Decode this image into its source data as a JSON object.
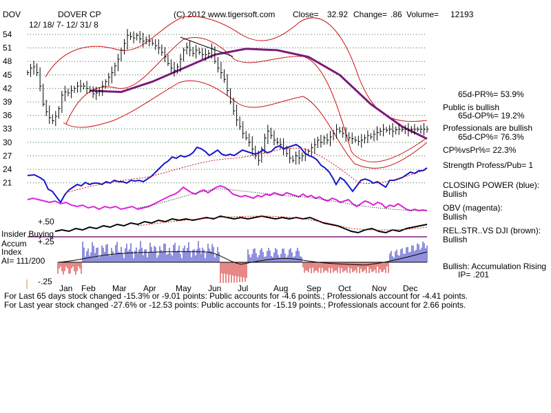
{
  "header": {
    "ticker": "DOV",
    "company": "DOVER CP",
    "date_range": "12/ 18/ 7- 12/ 31/ 8",
    "copyright": "(C) 2012 www.tigersoft.com",
    "close_label": "Close=",
    "close_value": "32.92",
    "change_label": "Change=",
    "change_value": ".86",
    "volume_label": "Volume=",
    "volume_value": "12193"
  },
  "indicator_labels": {
    "insider_buying": "Insider Buying",
    "accum_index_line1": "Accum",
    "accum_index_line2": "Index",
    "ai": "AI= 111/200",
    "plus50": "+.50",
    "plus25": "+.25",
    "minus25": "-.25"
  },
  "right_panel": {
    "pr": "65d-PR%= 53.9%",
    "public_bullish": "Public is bullish",
    "op": "65d-OP%= 19.2%",
    "pros_bullish": "Professionals are bullish",
    "cp": "65d-CP%= 76.3%",
    "cpvspr": "CP%vsPr%=  22.3%",
    "strength": "Strength Profess/Pub= 1",
    "closing_power": "CLOSING POWER (blue):",
    "closing_power_value": "Bullish",
    "obv": "OBV (magenta):",
    "obv_value": "Bullish",
    "relstr": "REL.STR..VS DJI (brown):",
    "relstr_value": "Bullish",
    "accum_rising": "Bullish: Accumulation Rising",
    "ip": "IP=  .201"
  },
  "footer": {
    "line1": "For Last 65 days stock changed -15.3% or -9.01 points:  Public accounts for -4.6 points.;  Professionals account for -4.41 points.",
    "line2": "For Last year stock changed -27.6% or -12.53 points:  Public accounts for -15.19 points.;  Professionals account for  2.66 points."
  },
  "colors": {
    "price_bar": "#000000",
    "ma_purple": "#7b1a7b",
    "bands_red": "#cc1111",
    "closing_power_blue": "#1515cc",
    "obv_magenta": "#dd22dd",
    "relstr_black": "#000000",
    "accum_blue": "#2222bb",
    "accum_red": "#cc1111",
    "grid": "#2f6f2f"
  },
  "chart_data": {
    "type": "line",
    "title": "DOVER CP",
    "ylim": [
      19,
      56
    ],
    "yticks": [
      54,
      51,
      48,
      45,
      42,
      39,
      36,
      33,
      30,
      27,
      24,
      21
    ],
    "months": [
      "Jan",
      "Feb",
      "Mar",
      "Apr",
      "May",
      "Jun",
      "Jul",
      "Aug",
      "Sep",
      "Oct",
      "Nov",
      "Dec"
    ],
    "series": [
      {
        "name": "price_close",
        "x": [
          0,
          2,
          4,
          6,
          8,
          10,
          12,
          14,
          16,
          18,
          20,
          22,
          24,
          26,
          28,
          30,
          32,
          34,
          36,
          38,
          40,
          42,
          44,
          46,
          48,
          50,
          52,
          54,
          56,
          58,
          60,
          62,
          64,
          66,
          68,
          70,
          72,
          74,
          76,
          78,
          80,
          82,
          84,
          86,
          88,
          90,
          92,
          94,
          96,
          98,
          100,
          102,
          104,
          106,
          108,
          110,
          112,
          114,
          116,
          118,
          120,
          122,
          124,
          126,
          128,
          130,
          132,
          134,
          136,
          138,
          140,
          142,
          144,
          146,
          148,
          150,
          152,
          154,
          156,
          158,
          160,
          162,
          164,
          166,
          168,
          170,
          172,
          174,
          176,
          178,
          180,
          182,
          184,
          186,
          188,
          190,
          192,
          194,
          196,
          198,
          200,
          202,
          204,
          206,
          208,
          210,
          212,
          214,
          216,
          218,
          220,
          222,
          224,
          226,
          228,
          230,
          232,
          234,
          236,
          238,
          240,
          242,
          244,
          246,
          248,
          250,
          252,
          254,
          256
        ],
        "values": [
          45.5,
          46.5,
          46.8,
          45.5,
          42.5,
          38.5,
          36.8,
          35.5,
          34.8,
          35.8,
          37.5,
          40.5,
          41.2,
          41.0,
          41.5,
          42.0,
          42.5,
          42.5,
          42.5,
          42.0,
          41.5,
          40.8,
          41.0,
          41.5,
          42.5,
          43.5,
          44.5,
          45.5,
          47.0,
          48.5,
          50.5,
          52.0,
          53.8,
          53.5,
          53.2,
          53.8,
          53.0,
          52.5,
          52.8,
          52.5,
          52.0,
          51.5,
          51.0,
          50.0,
          49.0,
          47.5,
          46.5,
          46.0,
          46.8,
          48.5,
          50.5,
          51.2,
          50.5,
          49.8,
          50.5,
          50.0,
          49.5,
          49.5,
          49.8,
          50.8,
          48.0,
          46.5,
          45.5,
          44.0,
          41.5,
          39.0,
          37.0,
          35.0,
          33.5,
          32.0,
          31.0,
          30.0,
          28.5,
          27.0,
          26.0,
          28.5,
          31.0,
          32.5,
          31.5,
          30.5,
          30.0,
          29.5,
          28.5,
          27.5,
          26.5,
          26.0,
          27.0,
          26.5,
          27.0,
          27.5,
          28.0,
          28.8,
          29.5,
          30.5,
          30.0,
          31.0,
          30.5,
          31.2,
          32.0,
          32.9,
          32.5,
          32.0,
          31.5,
          31.0,
          30.8,
          30.5,
          30.2,
          30.5,
          31.0,
          31.5,
          31.2,
          31.8,
          32.2,
          32.5,
          32.9,
          32.7,
          32.9,
          32.5,
          32.8,
          32.9,
          32.8,
          32.9,
          32.7,
          32.9,
          32.9,
          32.9,
          32.9,
          32.9,
          32.92
        ]
      },
      {
        "name": "ma_purple",
        "x": [
          40,
          60,
          80,
          100,
          120,
          140,
          160,
          180,
          200,
          220,
          240,
          256
        ],
        "values": [
          41.5,
          41.2,
          43.5,
          46.5,
          49.5,
          50.8,
          50.5,
          49.0,
          45.0,
          38.5,
          33.5,
          30.8
        ]
      }
    ]
  }
}
